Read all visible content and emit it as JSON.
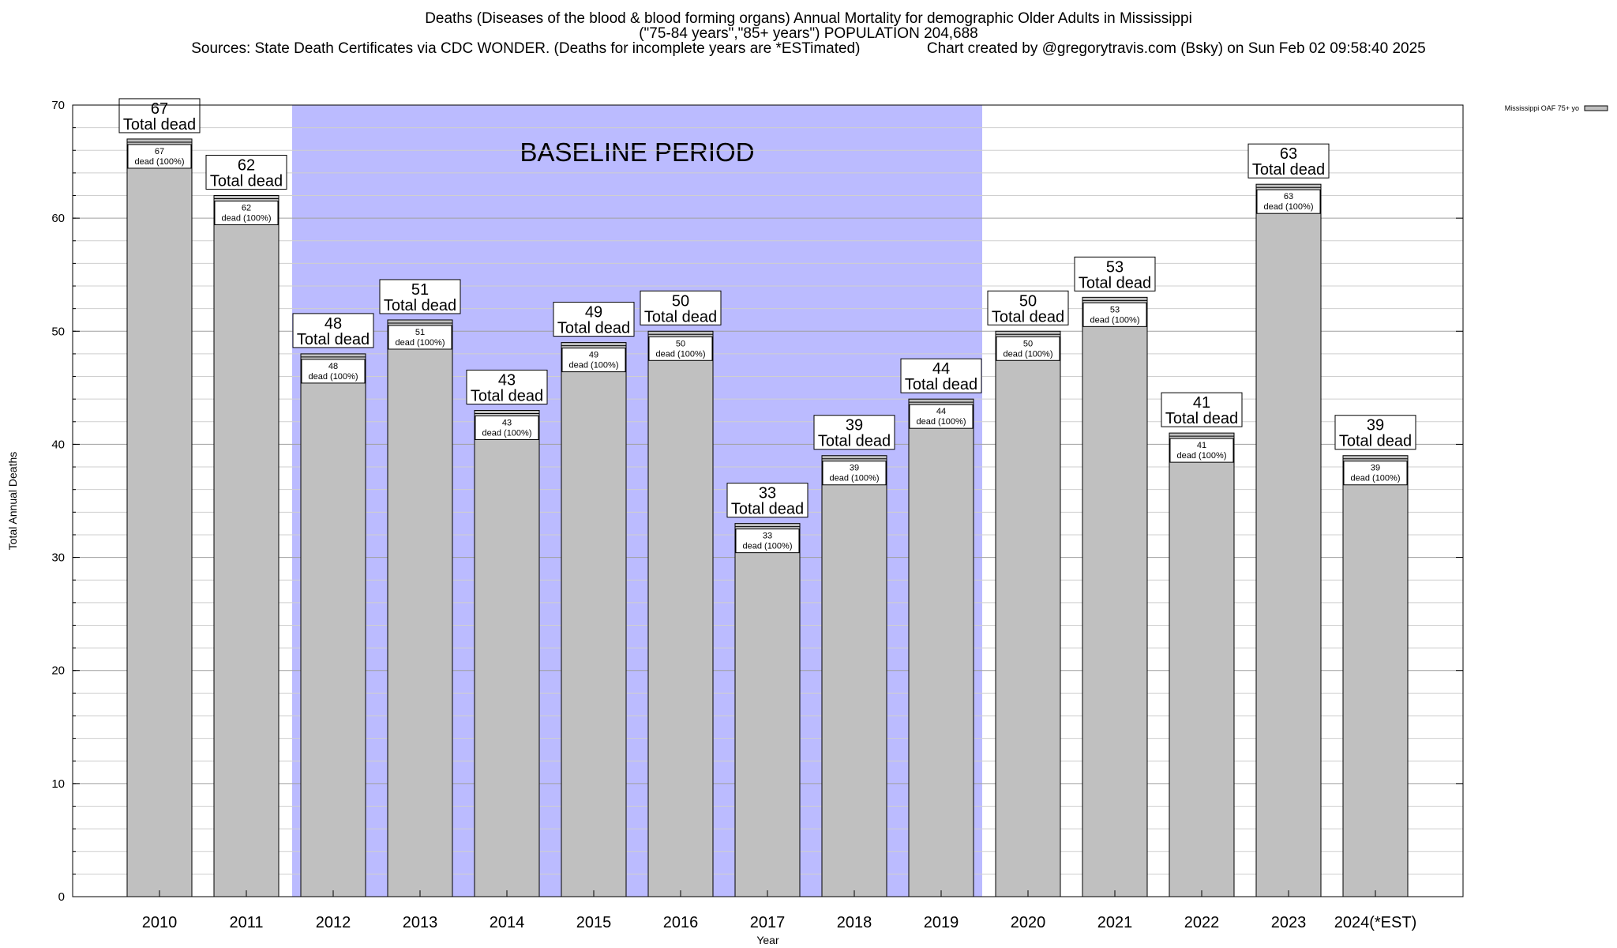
{
  "title": {
    "line1": "Deaths (Diseases of the blood & blood forming organs) Annual Mortality for demographic Older Adults in Mississippi",
    "line2": "(\"75-84 years\",\"85+ years\") POPULATION 204,688",
    "line3": "Sources: State Death Certificates via CDC WONDER. (Deaths for incomplete years are *ESTimated)                Chart created by @gregorytravis.com (Bsky) on Sun Feb 02 09:58:40 2025"
  },
  "chart_data": {
    "type": "bar",
    "categories": [
      "2010",
      "2011",
      "2012",
      "2013",
      "2014",
      "2015",
      "2016",
      "2017",
      "2018",
      "2019",
      "2020",
      "2021",
      "2022",
      "2023",
      "2024(*EST)"
    ],
    "series": [
      {
        "name": "Mississippi OAF 75+ yo",
        "values": [
          67,
          62,
          48,
          51,
          43,
          49,
          50,
          33,
          39,
          44,
          50,
          53,
          41,
          63,
          39
        ],
        "color": "#c0c0c0"
      }
    ],
    "total_label": "Total dead",
    "inner_label": "dead (100%)",
    "xlabel": "Year",
    "ylabel": "Total Annual Deaths",
    "ylim": [
      0,
      70
    ],
    "yticks": [
      0,
      10,
      20,
      30,
      40,
      50,
      60,
      70
    ],
    "grid": true,
    "legend": {
      "position": "top-right"
    },
    "baseline": {
      "label": "BASELINE PERIOD",
      "from": "2012",
      "to": "2019",
      "color": "#bbbbff"
    }
  }
}
